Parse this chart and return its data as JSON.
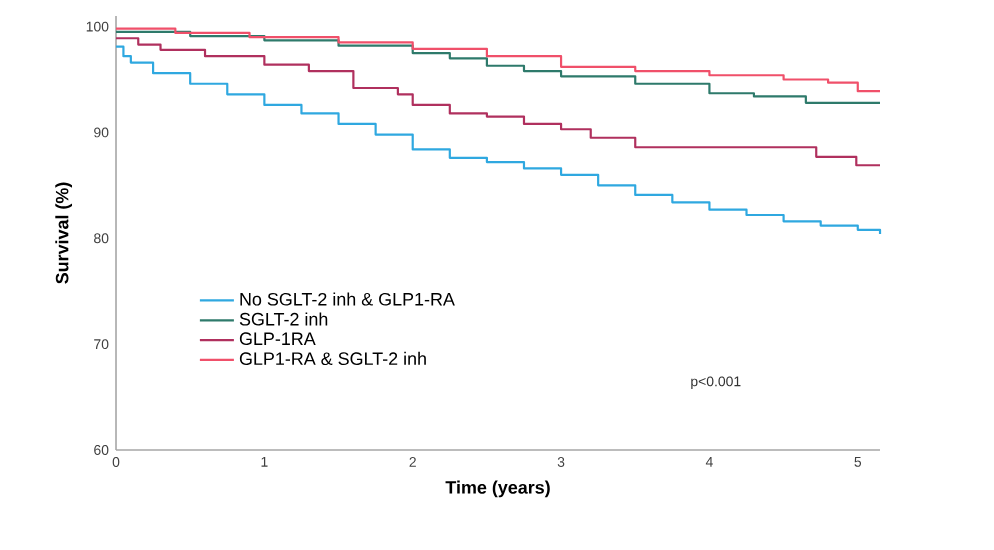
{
  "chart_data": {
    "type": "step",
    "xlabel": "Time (years)",
    "ylabel": "Survival (%)",
    "xlim": [
      0,
      5.15
    ],
    "ylim": [
      60,
      101
    ],
    "xticks": [
      0,
      1,
      2,
      3,
      4,
      5
    ],
    "yticks": [
      60,
      70,
      80,
      90,
      100
    ],
    "grid": false,
    "legend": "bottom left",
    "marker": "none",
    "line_style": "solid",
    "annotations": [
      "p<0.001"
    ],
    "series": [
      {
        "name": "No SGLT-2 inh & GLP1-RA",
        "color": "#2fa8e0",
        "x": [
          0,
          0.05,
          0.1,
          0.25,
          0.5,
          0.75,
          1,
          1.25,
          1.5,
          1.75,
          2,
          2.25,
          2.5,
          2.75,
          3,
          3.25,
          3.5,
          3.75,
          4,
          4.25,
          4.5,
          4.75,
          5,
          5.15
        ],
        "values": [
          98.1,
          97.2,
          96.6,
          95.6,
          94.6,
          93.6,
          92.6,
          91.8,
          90.8,
          89.8,
          88.4,
          87.6,
          87.2,
          86.6,
          86.0,
          85.0,
          84.1,
          83.4,
          82.7,
          82.2,
          81.6,
          81.2,
          80.8,
          80.4
        ]
      },
      {
        "name": "SGLT-2 inh",
        "color": "#2e7a6b",
        "x": [
          0,
          0.5,
          1,
          1.5,
          2,
          2.25,
          2.5,
          2.75,
          3,
          3.5,
          4,
          4.3,
          4.65,
          5.15
        ],
        "values": [
          99.5,
          99.1,
          98.7,
          98.2,
          97.5,
          97.0,
          96.3,
          95.8,
          95.3,
          94.6,
          93.7,
          93.4,
          92.8,
          92.8
        ]
      },
      {
        "name": "GLP-1RA",
        "color": "#b0305e",
        "x": [
          0,
          0.15,
          0.3,
          0.6,
          1,
          1.3,
          1.6,
          1.9,
          2,
          2.25,
          2.5,
          2.75,
          3,
          3.2,
          3.5,
          4.72,
          4.99,
          5.15
        ],
        "values": [
          98.9,
          98.3,
          97.8,
          97.2,
          96.4,
          95.8,
          94.2,
          93.6,
          92.6,
          91.8,
          91.5,
          90.8,
          90.3,
          89.5,
          88.6,
          87.7,
          86.9,
          86.9
        ]
      },
      {
        "name": "GLP1-RA & SGLT-2 inh",
        "color": "#f0506a",
        "x": [
          0,
          0.4,
          0.9,
          1.5,
          2,
          2.5,
          3,
          3.5,
          4,
          4.5,
          4.8,
          5.0,
          5.15
        ],
        "values": [
          99.8,
          99.4,
          99.0,
          98.5,
          97.9,
          97.2,
          96.2,
          95.8,
          95.4,
          95.0,
          94.7,
          93.9,
          93.9
        ]
      }
    ]
  }
}
